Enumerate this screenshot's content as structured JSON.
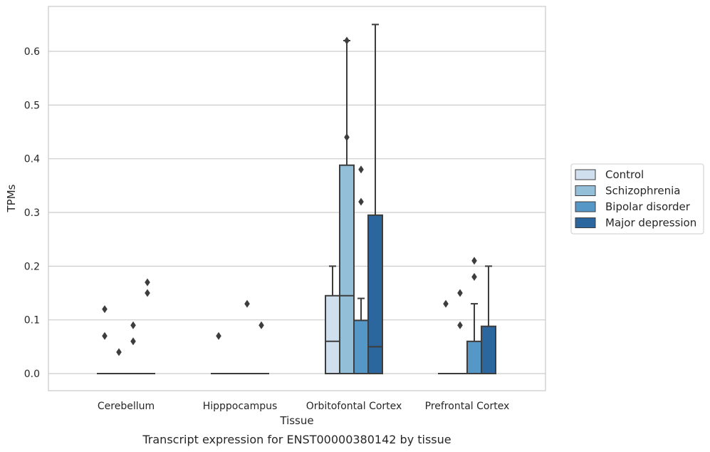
{
  "chart_data": {
    "type": "box",
    "title": "",
    "caption": "Transcript expression for ENST00000380142 by tissue",
    "xlabel": "Tissue",
    "ylabel": "TPMs",
    "ylim": [
      -0.033,
      0.683
    ],
    "yticks": [
      0.0,
      0.1,
      0.2,
      0.3,
      0.4,
      0.5,
      0.6
    ],
    "ytick_labels": [
      "0.0",
      "0.1",
      "0.2",
      "0.3",
      "0.4",
      "0.5",
      "0.6"
    ],
    "grid": "horizontal",
    "legend_position": "right",
    "categories": [
      "Cerebellum",
      "Hipppocampus",
      "Orbitofontal Cortex",
      "Prefrontal Cortex"
    ],
    "series": [
      {
        "name": "Control",
        "color": "#cfdfee",
        "boxes": [
          {
            "q1": 0,
            "median": 0,
            "q3": 0,
            "whislo": 0,
            "whishi": 0,
            "fliers": [
              0.07,
              0.12
            ]
          },
          {
            "q1": 0,
            "median": 0,
            "q3": 0,
            "whislo": 0,
            "whishi": 0,
            "fliers": [
              0.07
            ]
          },
          {
            "q1": 0,
            "median": 0.06,
            "q3": 0.145,
            "whislo": 0,
            "whishi": 0.2,
            "fliers": []
          },
          {
            "q1": 0,
            "median": 0,
            "q3": 0,
            "whislo": 0,
            "whishi": 0,
            "fliers": [
              0.13
            ]
          }
        ]
      },
      {
        "name": "Schizophrenia",
        "color": "#94bfd9",
        "boxes": [
          {
            "q1": 0,
            "median": 0,
            "q3": 0,
            "whislo": 0,
            "whishi": 0,
            "fliers": [
              0.04
            ]
          },
          {
            "q1": 0,
            "median": 0,
            "q3": 0,
            "whislo": 0,
            "whishi": 0,
            "fliers": []
          },
          {
            "q1": 0,
            "median": 0.145,
            "q3": 0.388,
            "whislo": 0,
            "whishi": 0.62,
            "fliers": [
              0.44,
              0.62
            ]
          },
          {
            "q1": 0,
            "median": 0,
            "q3": 0,
            "whislo": 0,
            "whishi": 0,
            "fliers": [
              0.09,
              0.15
            ]
          }
        ]
      },
      {
        "name": "Bipolar disorder",
        "color": "#5597c6",
        "boxes": [
          {
            "q1": 0,
            "median": 0,
            "q3": 0,
            "whislo": 0,
            "whishi": 0,
            "fliers": [
              0.06,
              0.09
            ]
          },
          {
            "q1": 0,
            "median": 0,
            "q3": 0,
            "whislo": 0,
            "whishi": 0,
            "fliers": [
              0.13
            ]
          },
          {
            "q1": 0,
            "median": 0,
            "q3": 0.099,
            "whislo": 0,
            "whishi": 0.14,
            "fliers": [
              0.32,
              0.38
            ]
          },
          {
            "q1": 0,
            "median": 0,
            "q3": 0.06,
            "whislo": 0,
            "whishi": 0.13,
            "fliers": [
              0.18,
              0.21
            ]
          }
        ]
      },
      {
        "name": "Major depression",
        "color": "#2b669e",
        "boxes": [
          {
            "q1": 0,
            "median": 0,
            "q3": 0,
            "whislo": 0,
            "whishi": 0,
            "fliers": [
              0.15,
              0.17
            ]
          },
          {
            "q1": 0,
            "median": 0,
            "q3": 0,
            "whislo": 0,
            "whishi": 0,
            "fliers": [
              0.09
            ]
          },
          {
            "q1": 0,
            "median": 0.05,
            "q3": 0.295,
            "whislo": 0,
            "whishi": 0.65,
            "fliers": []
          },
          {
            "q1": 0,
            "median": 0,
            "q3": 0.088,
            "whislo": 0,
            "whishi": 0.2,
            "fliers": []
          }
        ]
      }
    ]
  }
}
